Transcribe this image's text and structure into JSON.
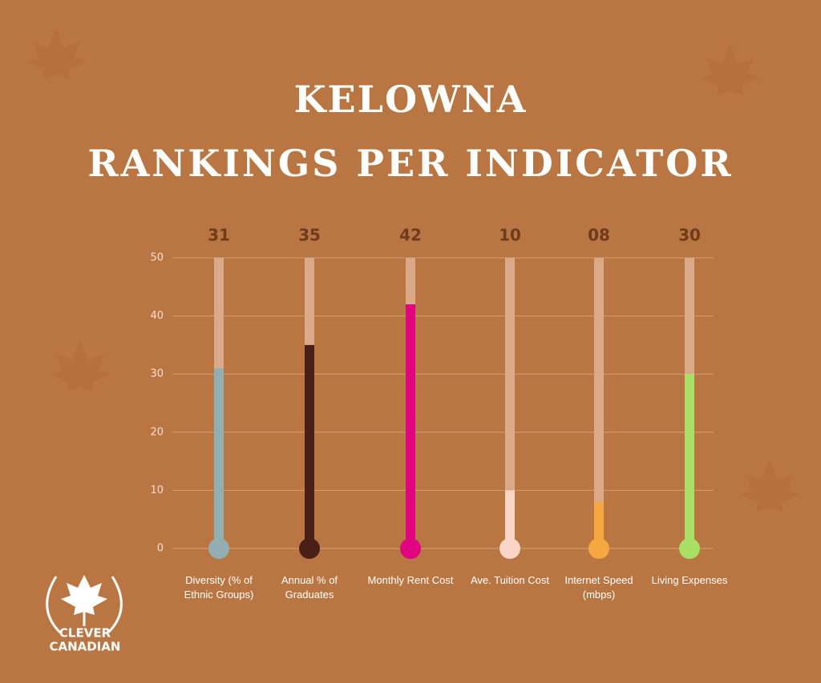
{
  "chart_data": {
    "type": "thermometer-bar",
    "title": "KELOWNA",
    "subtitle": "RANKINGS PER INDICATOR",
    "categories": [
      "Diversity (% of Ethnic Groups)",
      "Annual % of Graduates",
      "Monthly Rent Cost",
      "Ave. Tuition Cost",
      "Internet Speed (mbps)",
      "Living Expenses"
    ],
    "values": [
      31,
      35,
      42,
      10,
      8,
      30
    ],
    "value_labels": [
      "31",
      "35",
      "42",
      "10",
      "08",
      "30"
    ],
    "colors": [
      "#93aeb1",
      "#4a1f16",
      "#e0047f",
      "#fbd5c6",
      "#f6a73f",
      "#a8e066"
    ],
    "track_color": "#d9a98a",
    "ylim": [
      0,
      50
    ],
    "yticks": [
      0,
      10,
      20,
      30,
      40,
      50
    ],
    "grid": true
  },
  "brand": [
    "CLEVER",
    "CANADIAN"
  ]
}
